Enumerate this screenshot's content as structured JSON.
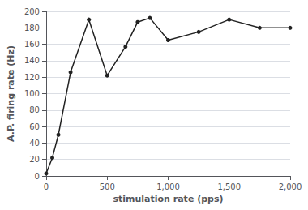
{
  "chart_data": {
    "type": "line",
    "x": [
      0,
      50,
      100,
      200,
      350,
      500,
      650,
      750,
      850,
      1000,
      1250,
      1500,
      1750,
      2000
    ],
    "values": [
      3,
      22,
      50,
      126,
      190,
      122,
      157,
      187,
      192,
      165,
      175,
      190,
      180,
      180
    ],
    "xlabel": "stimulation rate (pps)",
    "ylabel": "A.P. firing rate (Hz)",
    "xlim": [
      0,
      2000
    ],
    "ylim": [
      0,
      200
    ],
    "xticks": [
      0,
      500,
      1000,
      1500,
      2000
    ],
    "yticks": [
      0,
      20,
      40,
      60,
      80,
      100,
      120,
      140,
      160,
      180,
      200
    ],
    "color": "#222222",
    "marker": "circle",
    "grid": "y"
  }
}
